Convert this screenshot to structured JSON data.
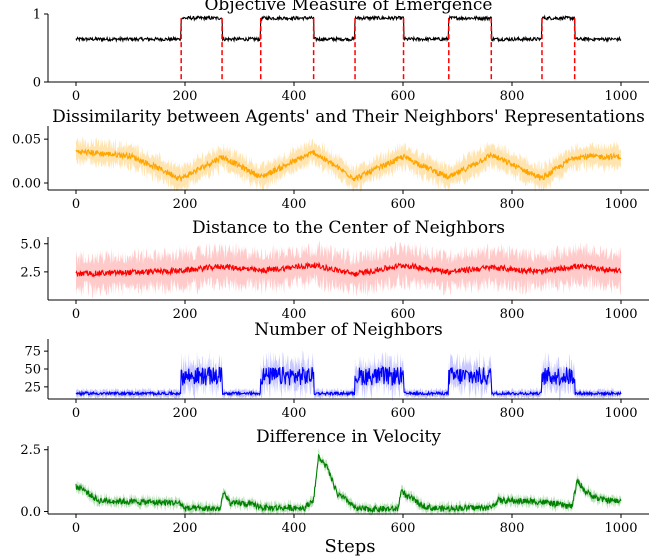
{
  "figure": {
    "xlabel": "Steps"
  },
  "chart_data": [
    {
      "type": "line",
      "title": "Objective Measure of Emergence",
      "color": "#000000",
      "xlim": [
        0,
        1000
      ],
      "ylim": [
        0,
        1
      ],
      "xticks": [
        0,
        200,
        400,
        600,
        800,
        1000
      ],
      "xtick_labels": [
        "0",
        "200",
        "400",
        "600",
        "800",
        "1000"
      ],
      "yticks": [
        0,
        1
      ],
      "ytick_labels": [
        "0",
        "1"
      ],
      "high_level": 0.94,
      "low_level": 0.63,
      "high_intervals": [
        [
          193,
          268
        ],
        [
          339,
          436
        ],
        [
          512,
          601
        ],
        [
          684,
          762
        ],
        [
          855,
          915
        ]
      ],
      "series": [
        {
          "x": [
            0,
            193,
            194,
            268,
            269,
            339,
            340,
            436,
            437,
            512,
            513,
            601,
            602,
            684,
            685,
            762,
            763,
            855,
            856,
            915,
            916,
            1000
          ],
          "values": [
            0.63,
            0.63,
            0.94,
            0.94,
            0.63,
            0.63,
            0.94,
            0.94,
            0.63,
            0.63,
            0.94,
            0.94,
            0.63,
            0.63,
            0.94,
            0.94,
            0.63,
            0.63,
            0.94,
            0.94,
            0.63,
            0.63
          ]
        }
      ],
      "markers": {
        "style": "dashed",
        "color": "#ff0000",
        "x": [
          193,
          268,
          339,
          436,
          512,
          601,
          684,
          762,
          855,
          915
        ]
      },
      "grid": false
    },
    {
      "type": "area",
      "title": "Dissimilarity between Agents' and Their Neighbors' Representations",
      "color": "#ffa500",
      "band_color": "#ffe4b0",
      "xlim": [
        0,
        1000
      ],
      "ylim": [
        -0.008,
        0.065
      ],
      "xticks": [
        0,
        200,
        400,
        600,
        800,
        1000
      ],
      "xtick_labels": [
        "0",
        "200",
        "400",
        "600",
        "800",
        "1000"
      ],
      "yticks": [
        0,
        0.05
      ],
      "ytick_labels": [
        "0.00",
        "0.05"
      ],
      "series": [
        {
          "x": [
            0,
            100,
            193,
            268,
            339,
            436,
            512,
            601,
            684,
            762,
            855,
            915,
            1000
          ],
          "values": [
            0.036,
            0.031,
            0.005,
            0.03,
            0.007,
            0.035,
            0.005,
            0.03,
            0.006,
            0.032,
            0.005,
            0.03,
            0.03
          ],
          "band_halfwidth": 0.012
        }
      ],
      "grid": false
    },
    {
      "type": "area",
      "title": "Distance to the Center of Neighbors",
      "color": "#ff0000",
      "band_color": "#ffcaca",
      "xlim": [
        0,
        1000
      ],
      "ylim": [
        0.0,
        5.6
      ],
      "xticks": [
        0,
        200,
        400,
        600,
        800,
        1000
      ],
      "xtick_labels": [
        "0",
        "200",
        "400",
        "600",
        "800",
        "1000"
      ],
      "yticks": [
        2.5,
        5.0
      ],
      "ytick_labels": [
        "2.5",
        "5.0"
      ],
      "series": [
        {
          "x": [
            0,
            193,
            268,
            339,
            436,
            512,
            601,
            684,
            762,
            855,
            915,
            1000
          ],
          "values": [
            2.3,
            2.6,
            3.0,
            2.6,
            3.1,
            2.3,
            3.1,
            2.5,
            2.9,
            2.5,
            3.0,
            2.6
          ],
          "band_halfwidth": 1.5
        }
      ],
      "grid": false
    },
    {
      "type": "area",
      "title": "Number of Neighbors",
      "color": "#0000ff",
      "band_color": "#c8c8ff",
      "xlim": [
        0,
        1000
      ],
      "ylim": [
        8,
        92
      ],
      "xticks": [
        0,
        200,
        400,
        600,
        800,
        1000
      ],
      "xtick_labels": [
        "0",
        "200",
        "400",
        "600",
        "800",
        "1000"
      ],
      "yticks": [
        25,
        50,
        75
      ],
      "ytick_labels": [
        "25",
        "50",
        "75"
      ],
      "high_intervals": [
        [
          193,
          268
        ],
        [
          339,
          436
        ],
        [
          512,
          601
        ],
        [
          684,
          762
        ],
        [
          855,
          915
        ]
      ],
      "series": [
        {
          "x": [
            0,
            193,
            268,
            339,
            436,
            512,
            601,
            684,
            762,
            855,
            915,
            1000
          ],
          "low": 15,
          "high": 40,
          "band_halfwidth": 12
        }
      ],
      "grid": false
    },
    {
      "type": "area",
      "title": "Difference in Velocity",
      "color": "#008000",
      "band_color": "#b8e0b8",
      "xlim": [
        0,
        1000
      ],
      "ylim": [
        -0.1,
        2.65
      ],
      "xticks": [
        0,
        200,
        400,
        600,
        800,
        1000
      ],
      "xtick_labels": [
        "0",
        "200",
        "400",
        "600",
        "800",
        "1000"
      ],
      "yticks": [
        0.0,
        2.5
      ],
      "ytick_labels": [
        "0.0",
        "2.5"
      ],
      "series": [
        {
          "x": [
            0,
            10,
            40,
            100,
            190,
            200,
            265,
            270,
            285,
            300,
            330,
            345,
            420,
            436,
            445,
            460,
            480,
            500,
            515,
            590,
            598,
            606,
            620,
            630,
            650,
            670,
            685,
            700,
            760,
            775,
            850,
            880,
            910,
            920,
            935,
            960,
            1000
          ],
          "values": [
            1.0,
            0.95,
            0.45,
            0.4,
            0.35,
            0.12,
            0.12,
            0.75,
            0.3,
            0.35,
            0.25,
            0.15,
            0.15,
            0.5,
            2.2,
            1.8,
            0.7,
            0.4,
            0.1,
            0.1,
            0.9,
            0.6,
            0.5,
            0.3,
            0.15,
            0.12,
            0.12,
            0.15,
            0.15,
            0.45,
            0.4,
            0.3,
            0.2,
            1.25,
            0.8,
            0.5,
            0.4
          ],
          "band_halfwidth": 0.18
        }
      ],
      "grid": false
    }
  ]
}
